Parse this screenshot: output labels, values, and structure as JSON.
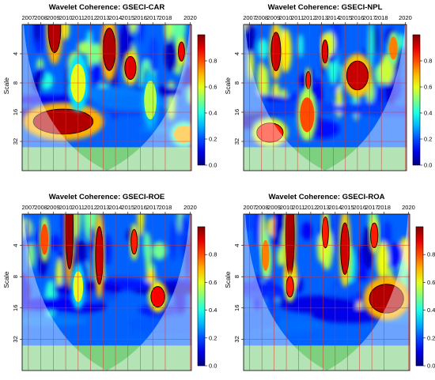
{
  "chart_data": [
    {
      "type": "heatmap",
      "title": "Wavelet Coherence: GSECI-CAR",
      "ylabel": "Scale",
      "x_ticks": [
        "2007",
        "2008",
        "2009",
        "2010",
        "2011",
        "2012",
        "2013",
        "2014",
        "2015",
        "2016",
        "2017",
        "2018",
        "2020"
      ],
      "y_ticks": [
        "4",
        "8",
        "16",
        "32"
      ],
      "colorbar": {
        "ticks": [
          "0.0",
          "0.2",
          "0.4",
          "0.6",
          "0.8"
        ],
        "range": [
          0,
          1
        ]
      },
      "grid": true,
      "cone_of_influence": true,
      "blobs": [
        {
          "year": 2009.1,
          "scale": 2.2,
          "rx": 0.5,
          "ry": 0.25,
          "value": 0.95
        },
        {
          "year": 2013.5,
          "scale": 3.6,
          "rx": 0.5,
          "ry": 0.22,
          "value": 0.95
        },
        {
          "year": 2015.2,
          "scale": 5.6,
          "rx": 0.45,
          "ry": 0.12,
          "value": 0.9
        },
        {
          "year": 2019.3,
          "scale": 3.8,
          "rx": 0.25,
          "ry": 0.1,
          "value": 0.88
        },
        {
          "year": 2009.8,
          "scale": 20,
          "rx": 2.4,
          "ry": 0.13,
          "value": 0.95
        },
        {
          "year": 2019.5,
          "scale": 27,
          "rx": 0.8,
          "ry": 0.09,
          "value": 0.7
        },
        {
          "year": 2011.0,
          "scale": 8,
          "rx": 0.6,
          "ry": 0.2,
          "value": 0.6
        },
        {
          "year": 2016.8,
          "scale": 12,
          "rx": 0.5,
          "ry": 0.2,
          "value": 0.55
        }
      ]
    },
    {
      "type": "heatmap",
      "title": "Wavelet Coherence: GSECI-NPL",
      "ylabel": "Scale",
      "x_ticks": [
        "2007",
        "2008",
        "2009",
        "2010",
        "2011",
        "2012",
        "2013",
        "2014",
        "2015",
        "2016",
        "2017",
        "2018",
        "2020"
      ],
      "y_ticks": [
        "4",
        "8",
        "16",
        "32"
      ],
      "colorbar": {
        "ticks": [
          "0.0",
          "0.2",
          "0.4",
          "0.6",
          "0.8"
        ],
        "range": [
          0,
          1
        ]
      },
      "grid": true,
      "cone_of_influence": true,
      "blobs": [
        {
          "year": 2009.2,
          "scale": 3.8,
          "rx": 0.4,
          "ry": 0.2,
          "value": 0.92
        },
        {
          "year": 2013.3,
          "scale": 3.8,
          "rx": 0.25,
          "ry": 0.12,
          "value": 0.9
        },
        {
          "year": 2016.0,
          "scale": 6.7,
          "rx": 0.9,
          "ry": 0.15,
          "value": 0.93
        },
        {
          "year": 2011.9,
          "scale": 7.5,
          "rx": 0.2,
          "ry": 0.09,
          "value": 0.85
        },
        {
          "year": 2011.8,
          "scale": 17,
          "rx": 0.6,
          "ry": 0.18,
          "value": 0.8
        },
        {
          "year": 2008.7,
          "scale": 26,
          "rx": 1.1,
          "ry": 0.1,
          "value": 0.85
        },
        {
          "year": 2019.0,
          "scale": 3.5,
          "rx": 0.35,
          "ry": 0.12,
          "value": 0.75
        }
      ]
    },
    {
      "type": "heatmap",
      "title": "Wavelet Coherence: GSECI-ROE",
      "ylabel": "Scale",
      "x_ticks": [
        "2007",
        "2008",
        "2009",
        "2010",
        "2011",
        "2012",
        "2013",
        "2014",
        "2015",
        "2016",
        "2017",
        "2018",
        "2020"
      ],
      "y_ticks": [
        "4",
        "8",
        "16",
        "32"
      ],
      "colorbar": {
        "ticks": [
          "0.0",
          "0.2",
          "0.4",
          "0.6",
          "0.8"
        ],
        "range": [
          0,
          1
        ]
      },
      "grid": true,
      "cone_of_influence": true,
      "blobs": [
        {
          "year": 2010.3,
          "scale": 2.7,
          "rx": 0.3,
          "ry": 0.4,
          "value": 0.97
        },
        {
          "year": 2012.7,
          "scale": 5.0,
          "rx": 0.3,
          "ry": 0.28,
          "value": 0.93
        },
        {
          "year": 2015.5,
          "scale": 3.7,
          "rx": 0.25,
          "ry": 0.12,
          "value": 0.85
        },
        {
          "year": 2017.4,
          "scale": 12.5,
          "rx": 0.55,
          "ry": 0.1,
          "value": 0.88
        },
        {
          "year": 2008.3,
          "scale": 3.5,
          "rx": 0.3,
          "ry": 0.15,
          "value": 0.8
        },
        {
          "year": 2011.0,
          "scale": 10,
          "rx": 0.4,
          "ry": 0.15,
          "value": 0.6
        }
      ]
    },
    {
      "type": "heatmap",
      "title": "Wavelet Coherence: GSECI-ROA",
      "ylabel": "Scale",
      "x_ticks": [
        "2007",
        "2008",
        "2009",
        "2010",
        "2011",
        "2012",
        "2013",
        "2014",
        "2015",
        "2016",
        "2017",
        "2018",
        "2020"
      ],
      "y_ticks": [
        "4",
        "8",
        "16",
        "32"
      ],
      "colorbar": {
        "ticks": [
          "0.0",
          "0.2",
          "0.4",
          "0.6",
          "0.8"
        ],
        "range": [
          0,
          1
        ]
      },
      "grid": true,
      "cone_of_influence": true,
      "blobs": [
        {
          "year": 2010.3,
          "scale": 3.2,
          "rx": 0.35,
          "ry": 0.4,
          "value": 0.96
        },
        {
          "year": 2013.2,
          "scale": 3.0,
          "rx": 0.25,
          "ry": 0.15,
          "value": 0.85
        },
        {
          "year": 2014.8,
          "scale": 4.3,
          "rx": 0.35,
          "ry": 0.25,
          "value": 0.92
        },
        {
          "year": 2017.2,
          "scale": 3.2,
          "rx": 0.3,
          "ry": 0.12,
          "value": 0.85
        },
        {
          "year": 2010.3,
          "scale": 10,
          "rx": 0.3,
          "ry": 0.1,
          "value": 0.85
        },
        {
          "year": 2018.2,
          "scale": 13,
          "rx": 1.4,
          "ry": 0.14,
          "value": 0.95
        },
        {
          "year": 2008.3,
          "scale": 5,
          "rx": 0.3,
          "ry": 0.15,
          "value": 0.75
        }
      ]
    }
  ]
}
